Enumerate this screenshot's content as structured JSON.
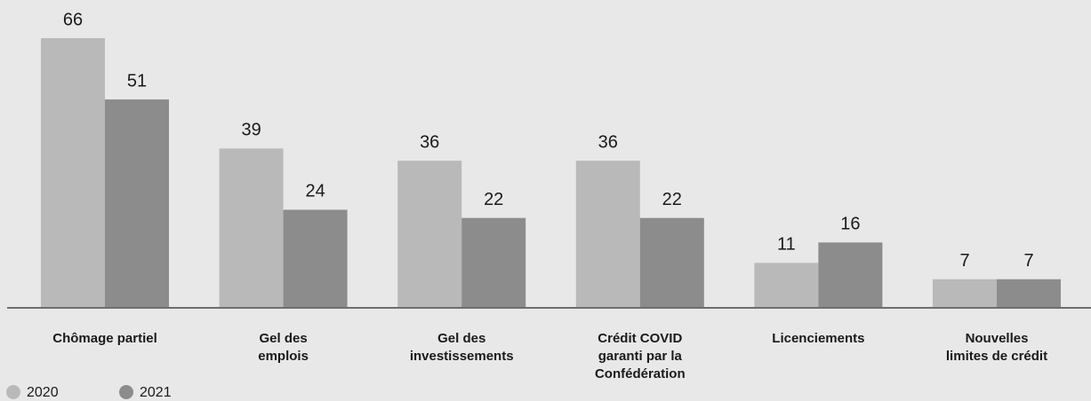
{
  "chart_data": {
    "type": "bar",
    "categories": [
      "Chômage partiel",
      "Gel des\nemplois",
      "Gel des\ninvestissements",
      "Crédit COVID\ngaranti par la\nConfédération",
      "Licenciements",
      "Nouvelles\nlimites de crédit"
    ],
    "series": [
      {
        "name": "2020",
        "color": "#b9b9b9",
        "values": [
          66,
          39,
          36,
          36,
          11,
          7
        ]
      },
      {
        "name": "2021",
        "color": "#8c8c8c",
        "values": [
          51,
          24,
          22,
          22,
          16,
          7
        ]
      }
    ],
    "ylim": [
      0,
      66
    ]
  }
}
